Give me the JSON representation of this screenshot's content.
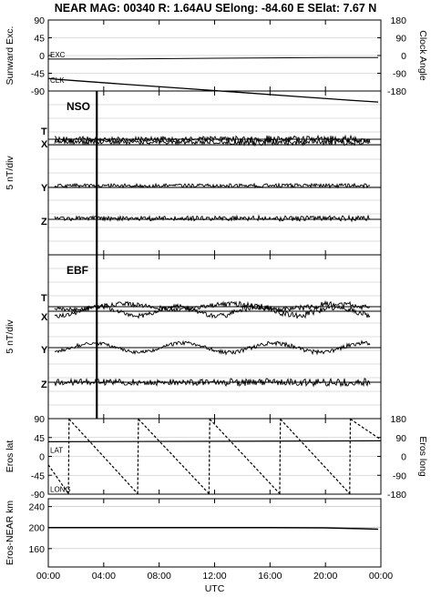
{
  "title": "NEAR MAG: 00340  R: 1.64AU  SElong:  -84.60 E  SElat:    7.67 N",
  "colors": {
    "trace": "#000000",
    "grid": "#bbbbbb",
    "frame": "#000000",
    "background": "#ffffff"
  },
  "chart_data": [
    {
      "type": "line",
      "panel": "sunward-excursion",
      "ylabel": "Sunward Exc.",
      "ylabel_right": "Clock Angle",
      "ylim": [
        -90,
        90
      ],
      "yticks": [
        "90",
        "45",
        "0",
        "-45",
        "-90"
      ],
      "ylim_right": [
        -180,
        180
      ],
      "yticks_right": [
        "180",
        "90",
        "0",
        "-90",
        "-180"
      ],
      "xlim_hours": [
        0,
        24
      ],
      "series": [
        {
          "name": "EXC",
          "x": [
            0,
            0.5,
            4,
            8,
            12,
            16,
            20,
            23.8
          ],
          "y": [
            -9,
            -9,
            -9,
            -8,
            -7,
            -6,
            -5,
            -5
          ]
        },
        {
          "name": "CLK",
          "x": [
            0,
            0.5,
            2,
            6,
            10,
            14,
            18,
            22,
            23.8
          ],
          "y": [
            -58,
            -60,
            -64,
            -74,
            -84,
            -94,
            -104,
            -114,
            -118
          ]
        }
      ]
    },
    {
      "type": "line",
      "panel": "NSO",
      "label": "NSO",
      "ylabel": "5 nT/div",
      "xlim_hours": [
        0,
        24
      ],
      "event_marker_hours": 3.5,
      "components": [
        "T",
        "X",
        "Y",
        "Z"
      ]
    },
    {
      "type": "line",
      "panel": "EBF",
      "label": "EBF",
      "ylabel": "5 nT/div",
      "xlim_hours": [
        0,
        24
      ],
      "event_marker_hours": 3.5,
      "components": [
        "T",
        "X",
        "Y",
        "Z"
      ]
    },
    {
      "type": "line",
      "panel": "eros-lat-long",
      "ylabel": "Eros lat",
      "ylabel_right": "Eros long",
      "ylim": [
        -90,
        90
      ],
      "yticks": [
        "90",
        "45",
        "0",
        "-45",
        "-90"
      ],
      "ylim_right": [
        -180,
        180
      ],
      "yticks_right": [
        "180",
        "90",
        "0",
        "-90",
        "-180"
      ],
      "xlim_hours": [
        0,
        24
      ],
      "series": [
        {
          "name": "LAT",
          "x": [
            0,
            24
          ],
          "y": [
            35,
            37
          ]
        },
        {
          "name": "LONG",
          "x": [
            0,
            1.45,
            1.5,
            6.45,
            6.5,
            11.6,
            11.65,
            16.7,
            16.75,
            21.75,
            21.8,
            24
          ],
          "y": [
            -40,
            -178,
            178,
            -178,
            178,
            -178,
            178,
            -178,
            178,
            -178,
            178,
            80
          ]
        }
      ]
    },
    {
      "type": "line",
      "panel": "eros-near-range",
      "ylabel": "Eros-NEAR km",
      "ylim": [
        125,
        255
      ],
      "yticks": [
        "240",
        "200",
        "160"
      ],
      "xlim_hours": [
        0,
        24
      ],
      "series": [
        {
          "name": "range",
          "x": [
            0,
            4,
            8,
            12,
            16,
            20,
            22.5,
            23.8
          ],
          "y": [
            200,
            200,
            200,
            200,
            200,
            199.5,
            198,
            197
          ]
        }
      ]
    }
  ],
  "x_axis": {
    "label": "UTC",
    "ticks": [
      "00:00",
      "04:00",
      "08:00",
      "12:00",
      "16:00",
      "20:00",
      "00:00"
    ],
    "tick_hours": [
      0,
      4,
      8,
      12,
      16,
      20,
      24
    ]
  },
  "labels": {
    "exc": "EXC",
    "clk": "CLK",
    "nso": "NSO",
    "ebf": "EBF",
    "lat": "LAT",
    "long": "LONG",
    "T": "T",
    "X": "X",
    "Y": "Y",
    "Z": "Z"
  }
}
